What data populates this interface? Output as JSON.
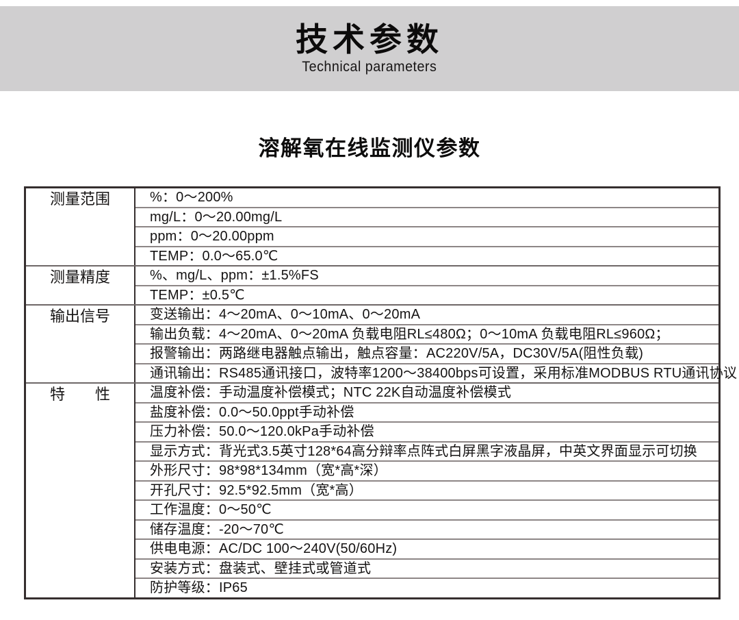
{
  "colors": {
    "band-bg": "#d0cfd0",
    "text": "#151313",
    "border-dark": "#352e2e",
    "border-mid": "#6e6767",
    "border-light": "#8d8686"
  },
  "header": {
    "title": "技术参数",
    "subtitle": "Technical parameters"
  },
  "section": {
    "title": "溶解氧在线监测仪参数"
  },
  "table": {
    "groups": [
      {
        "label": "测量范围",
        "rows": [
          "%：0～200%",
          "mg/L：0～20.00mg/L",
          "ppm：0～20.00ppm",
          "TEMP：0.0～65.0℃"
        ]
      },
      {
        "label": "测量精度",
        "rows": [
          "%、mg/L、ppm：±1.5%FS",
          "TEMP：±0.5℃"
        ]
      },
      {
        "label": "输出信号",
        "rows": [
          "变送输出：4～20mA、0～10mA、0～20mA",
          "输出负载：4～20mA、0～20mA 负载电阻RL≤480Ω；0～10mA 负载电阻RL≤960Ω；",
          "报警输出：两路继电器触点输出，触点容量：AC220V/5A，DC30V/5A(阻性负载)",
          "通讯输出：RS485通讯接口，波特率1200～38400bps可设置，采用标准MODBUS RTU通讯协议"
        ]
      },
      {
        "label": "特　　性",
        "rows": [
          "温度补偿：手动温度补偿模式；NTC 22K自动温度补偿模式",
          "盐度补偿：0.0～50.0ppt手动补偿",
          "压力补偿：50.0～120.0kPa手动补偿",
          "显示方式：背光式3.5英寸128*64高分辩率点阵式白屏黑字液晶屏，中英文界面显示可切换",
          "外形尺寸：98*98*134mm（宽*高*深）",
          "开孔尺寸：92.5*92.5mm（宽*高）",
          "工作温度：0～50℃",
          "储存温度：-20～70℃",
          "供电电源：AC/DC 100～240V(50/60Hz)",
          "安装方式：盘装式、壁挂式或管道式",
          "防护等级：IP65"
        ]
      }
    ]
  }
}
